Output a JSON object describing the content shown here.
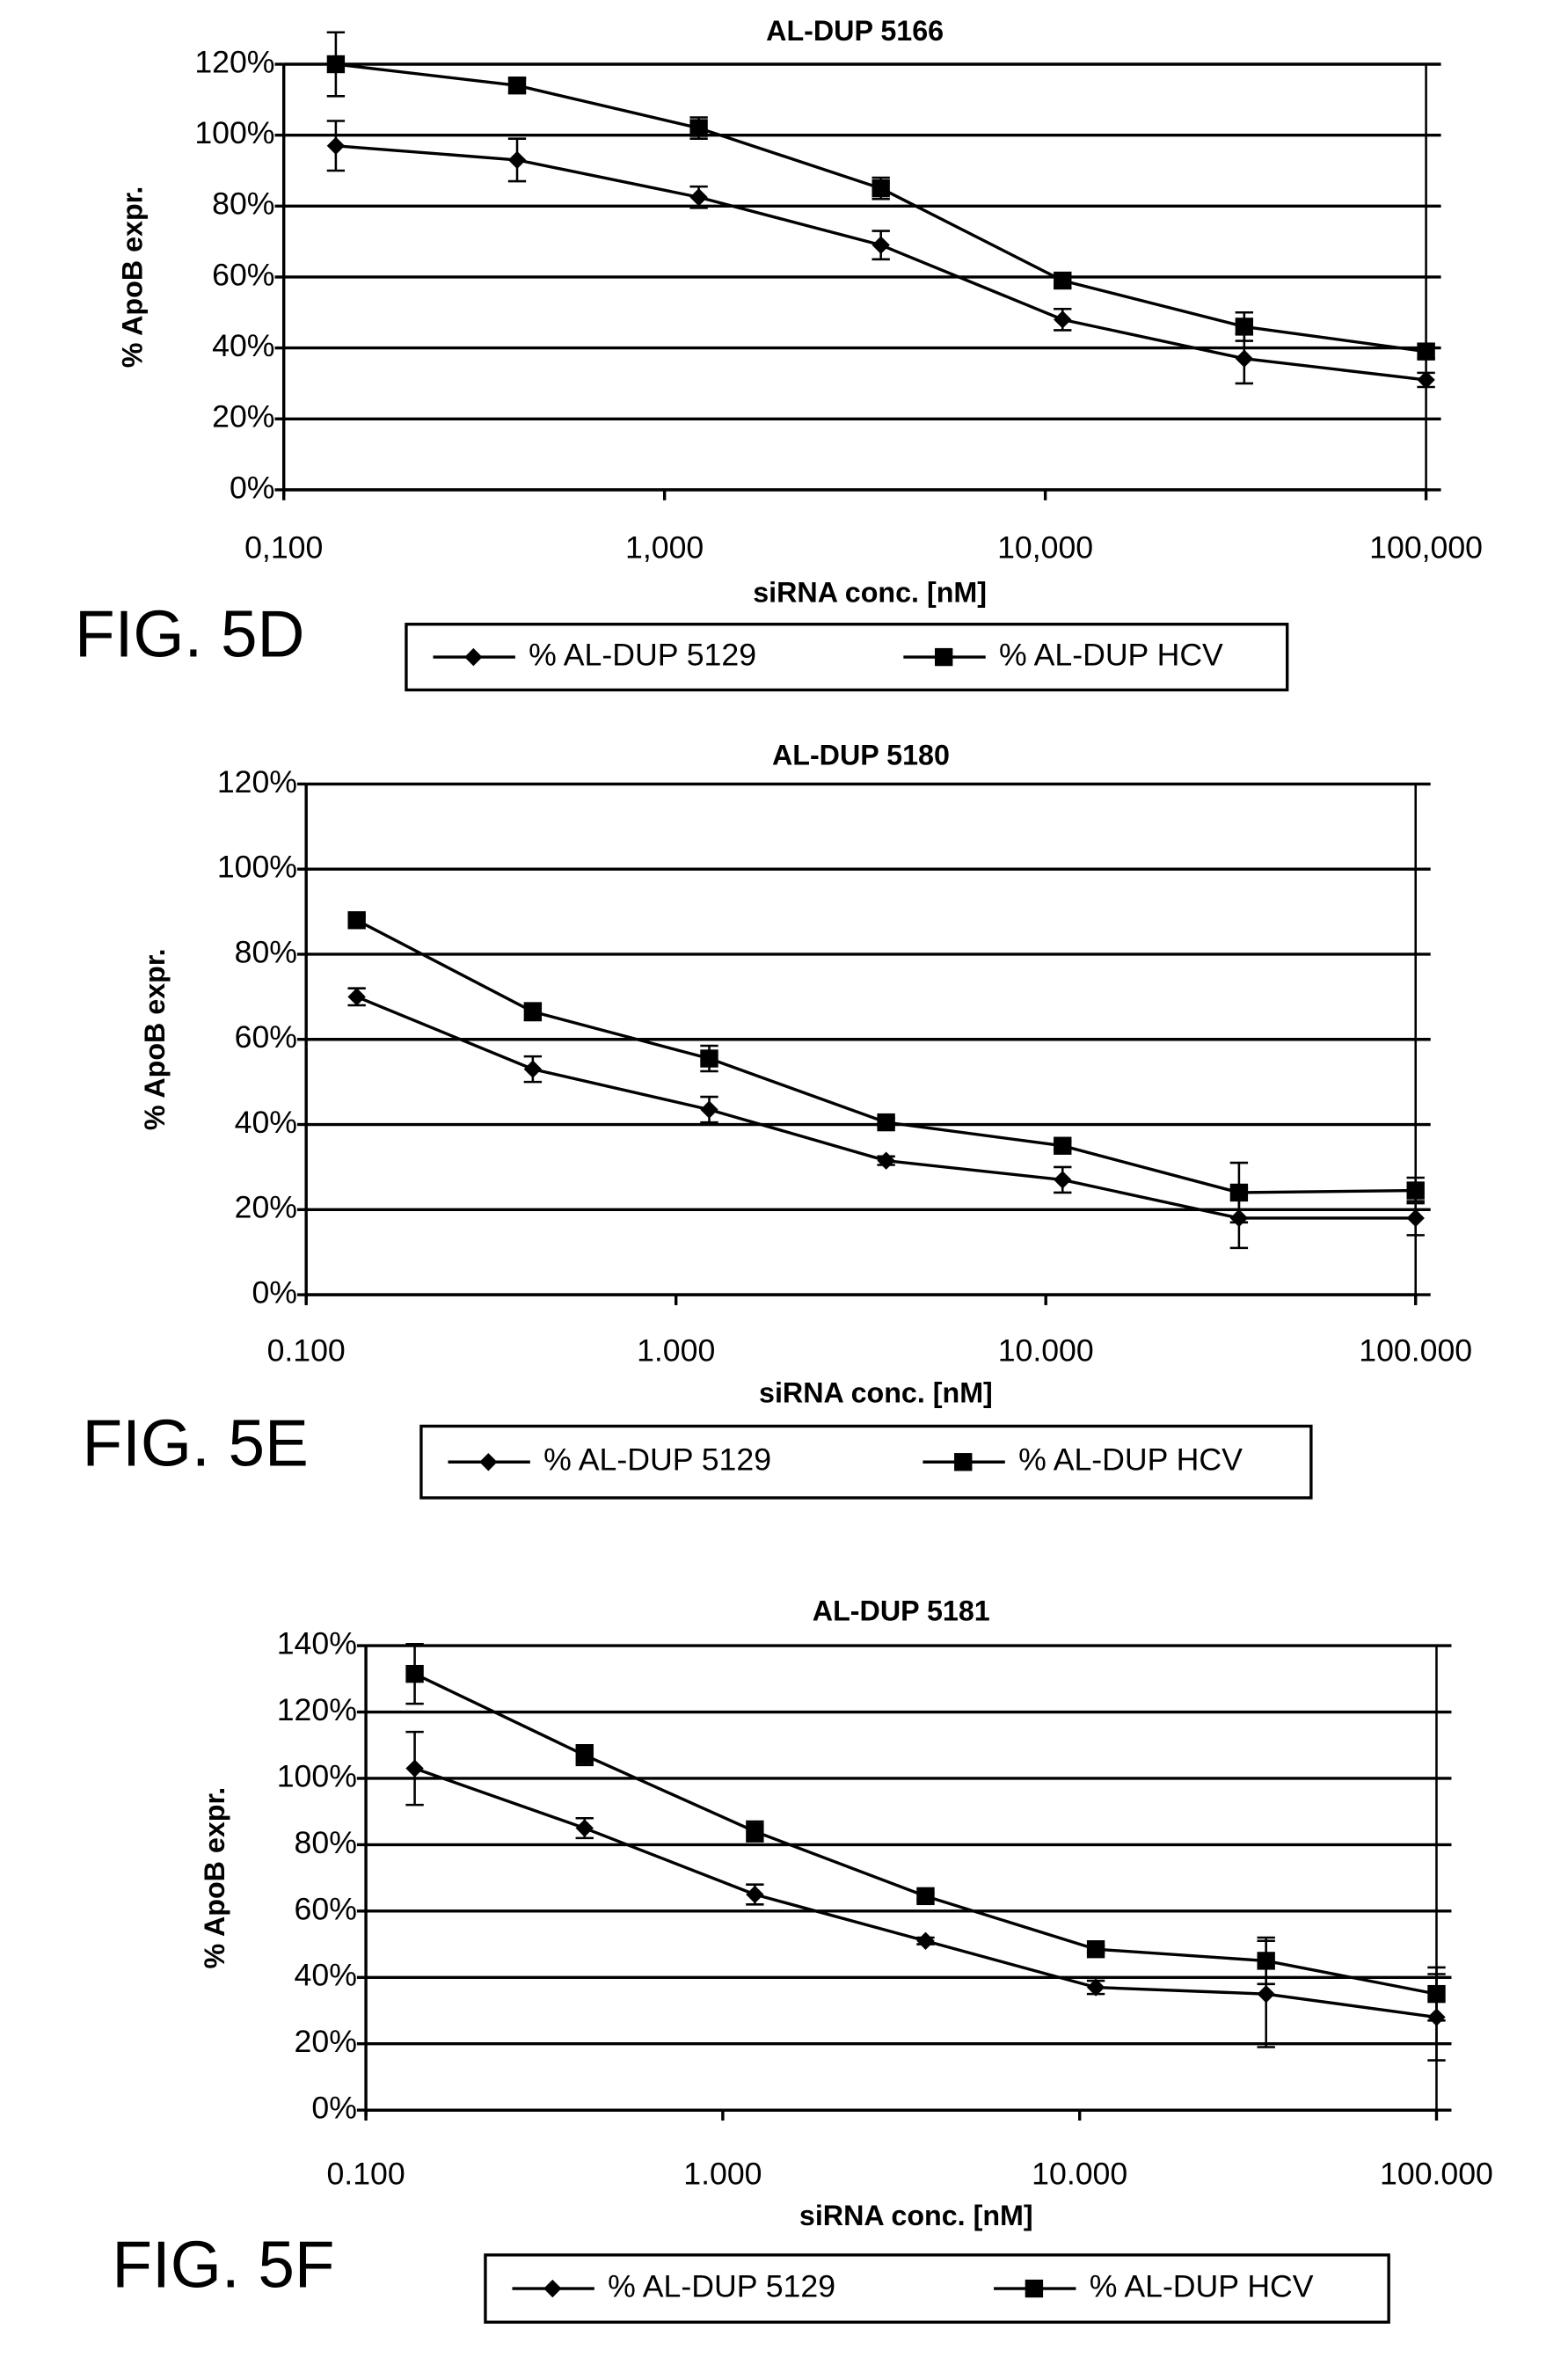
{
  "chart_data": [
    {
      "type": "line",
      "title": "AL-DUP 5166",
      "figure_label": "FIG. 5D",
      "x_label": "siRNA conc. [nM]",
      "y_label": "% ApoB expr.",
      "log_x": true,
      "grid": true,
      "x": [
        0.137,
        0.41,
        1.23,
        3.7,
        11.1,
        33.3,
        100
      ],
      "xlim": [
        0.1,
        100
      ],
      "xticks": [
        {
          "value": 0.1,
          "label": "0,100"
        },
        {
          "value": 1,
          "label": "1,000"
        },
        {
          "value": 10,
          "label": "10,000"
        },
        {
          "value": 100,
          "label": "100,000"
        }
      ],
      "ylim": [
        0,
        120
      ],
      "yticks": [
        {
          "value": 0,
          "label": "0%"
        },
        {
          "value": 20,
          "label": "20%"
        },
        {
          "value": 40,
          "label": "40%"
        },
        {
          "value": 60,
          "label": "60%"
        },
        {
          "value": 80,
          "label": "80%"
        },
        {
          "value": 100,
          "label": "100%"
        },
        {
          "value": 120,
          "label": "120%"
        }
      ],
      "series": [
        {
          "name": "% AL-DUP 5129",
          "color": "#000000",
          "marker": "diamond",
          "values": [
            97,
            93,
            82.5,
            69,
            48,
            37,
            31
          ],
          "errors": [
            7,
            6,
            3,
            4,
            3,
            7,
            2
          ]
        },
        {
          "name": "% AL-DUP HCV",
          "color": "#000000",
          "marker": "square",
          "values": [
            120,
            114,
            102,
            85,
            59,
            46,
            39
          ],
          "errors": [
            9,
            2,
            3,
            3,
            2,
            4,
            2
          ]
        }
      ]
    },
    {
      "type": "line",
      "title": "AL-DUP 5180",
      "figure_label": "FIG. 5E",
      "x_label": "siRNA conc. [nM]",
      "y_label": "% ApoB expr.",
      "log_x": true,
      "grid": true,
      "x": [
        0.137,
        0.41,
        1.23,
        3.7,
        11.1,
        33.3,
        100
      ],
      "xlim": [
        0.1,
        100
      ],
      "xticks": [
        {
          "value": 0.1,
          "label": "0.100"
        },
        {
          "value": 1,
          "label": "1.000"
        },
        {
          "value": 10,
          "label": "10.000"
        },
        {
          "value": 100,
          "label": "100.000"
        }
      ],
      "ylim": [
        0,
        120
      ],
      "yticks": [
        {
          "value": 0,
          "label": "0%"
        },
        {
          "value": 20,
          "label": "20%"
        },
        {
          "value": 40,
          "label": "40%"
        },
        {
          "value": 60,
          "label": "60%"
        },
        {
          "value": 80,
          "label": "80%"
        },
        {
          "value": 100,
          "label": "100%"
        },
        {
          "value": 120,
          "label": "120%"
        }
      ],
      "series": [
        {
          "name": "% AL-DUP 5129",
          "color": "#000000",
          "marker": "diamond",
          "values": [
            70,
            53,
            43.5,
            31.5,
            27,
            18,
            18
          ],
          "errors": [
            2,
            3,
            3,
            1,
            3,
            7,
            4
          ]
        },
        {
          "name": "% AL-DUP HCV",
          "color": "#000000",
          "marker": "square",
          "values": [
            88,
            66.5,
            55.5,
            40.5,
            35,
            24,
            24.5
          ],
          "errors": [
            1,
            2,
            3,
            1,
            1,
            7,
            3
          ]
        }
      ]
    },
    {
      "type": "line",
      "title": "AL-DUP 5181",
      "figure_label": "FIG. 5F",
      "x_label": "siRNA conc. [nM]",
      "y_label": "% ApoB expr.",
      "log_x": true,
      "grid": true,
      "x": [
        0.137,
        0.41,
        1.23,
        3.7,
        11.1,
        33.3,
        100
      ],
      "xlim": [
        0.1,
        100
      ],
      "xticks": [
        {
          "value": 0.1,
          "label": "0.100"
        },
        {
          "value": 1,
          "label": "1.000"
        },
        {
          "value": 10,
          "label": "10.000"
        },
        {
          "value": 100,
          "label": "100.000"
        }
      ],
      "ylim": [
        0,
        140
      ],
      "yticks": [
        {
          "value": 0,
          "label": "0%"
        },
        {
          "value": 20,
          "label": "20%"
        },
        {
          "value": 40,
          "label": "40%"
        },
        {
          "value": 60,
          "label": "60%"
        },
        {
          "value": 80,
          "label": "80%"
        },
        {
          "value": 100,
          "label": "100%"
        },
        {
          "value": 120,
          "label": "120%"
        },
        {
          "value": 140,
          "label": "140%"
        }
      ],
      "series": [
        {
          "name": "% AL-DUP 5129",
          "color": "#000000",
          "marker": "diamond",
          "values": [
            103,
            85,
            65,
            51,
            37,
            35,
            28
          ],
          "errors": [
            11,
            3,
            3,
            1,
            2,
            16,
            13
          ]
        },
        {
          "name": "% AL-DUP HCV",
          "color": "#000000",
          "marker": "square",
          "values": [
            131.5,
            107,
            84,
            64.5,
            48.5,
            45,
            35
          ],
          "errors": [
            9,
            3,
            3,
            1,
            1,
            7,
            8
          ]
        }
      ]
    }
  ]
}
